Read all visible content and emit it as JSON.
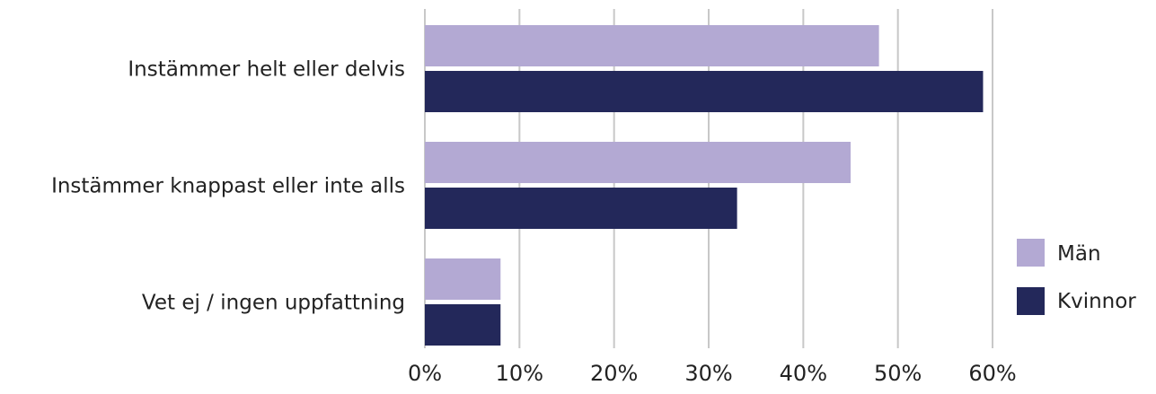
{
  "chart_data": {
    "type": "bar",
    "orientation": "horizontal",
    "categories": [
      "Instämmer helt eller delvis",
      "Instämmer knappast eller inte alls",
      "Vet ej / ingen uppfattning"
    ],
    "series": [
      {
        "name": "Män",
        "values": [
          48,
          45,
          8
        ],
        "color": "#b3a9d3"
      },
      {
        "name": "Kvinnor",
        "values": [
          59,
          33,
          8
        ],
        "color": "#23285a"
      }
    ],
    "xlim": [
      0,
      60
    ],
    "xticks": [
      0,
      10,
      20,
      30,
      40,
      50,
      60
    ],
    "xtick_labels": [
      "0%",
      "10%",
      "20%",
      "30%",
      "40%",
      "50%",
      "60%"
    ],
    "grid": "vertical",
    "legend_position": "right"
  }
}
